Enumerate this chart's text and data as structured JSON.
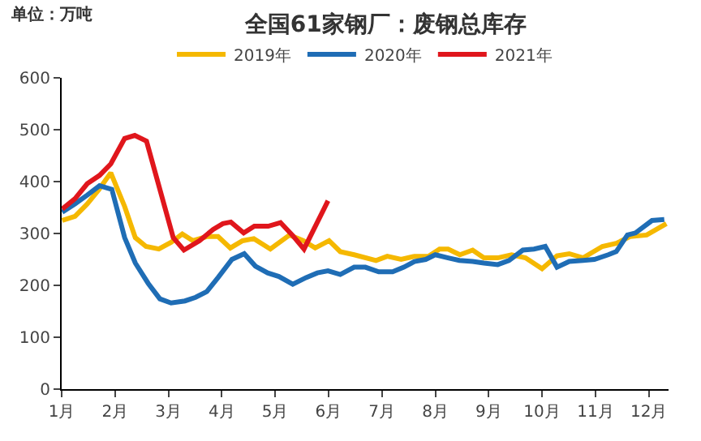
{
  "chart_data": {
    "type": "line",
    "title": "全国61家钢厂：废钢总库存",
    "ylabel": "单位：万吨",
    "xlim": [
      1,
      12.37
    ],
    "xticks": [
      {
        "value": 1,
        "label": "1月"
      },
      {
        "value": 2,
        "label": "2月"
      },
      {
        "value": 3,
        "label": "3月"
      },
      {
        "value": 4,
        "label": "4月"
      },
      {
        "value": 5,
        "label": "5月"
      },
      {
        "value": 6,
        "label": "6月"
      },
      {
        "value": 7,
        "label": "7月"
      },
      {
        "value": 8,
        "label": "8月"
      },
      {
        "value": 9,
        "label": "9月"
      },
      {
        "value": 10,
        "label": "10月"
      },
      {
        "value": 11,
        "label": "11月"
      },
      {
        "value": 12,
        "label": "12月"
      }
    ],
    "ylim": [
      0,
      600
    ],
    "yticks": [
      0,
      100,
      200,
      300,
      400,
      500,
      600
    ],
    "legend": "top",
    "marker": "none",
    "line_style": "solid",
    "series": [
      {
        "name": "2019年",
        "color": "#f5b800",
        "x": [
          1.01,
          1.25,
          1.48,
          1.7,
          1.92,
          2.18,
          2.38,
          2.58,
          2.82,
          3.05,
          3.26,
          3.46,
          3.72,
          3.93,
          4.16,
          4.39,
          4.6,
          4.91,
          5.27,
          5.53,
          5.75,
          6.01,
          6.22,
          6.48,
          6.89,
          7.1,
          7.36,
          7.61,
          7.87,
          8.08,
          8.24,
          8.46,
          8.7,
          8.91,
          9.17,
          9.43,
          9.69,
          10.0,
          10.28,
          10.51,
          10.77,
          11.13,
          11.39,
          11.65,
          11.96,
          12.33
        ],
        "values": [
          325,
          333,
          357,
          385,
          417,
          352,
          292,
          275,
          270,
          283,
          299,
          286,
          294,
          294,
          272,
          286,
          290,
          270,
          297,
          286,
          272,
          286,
          265,
          259,
          248,
          256,
          250,
          256,
          256,
          270,
          270,
          259,
          268,
          253,
          253,
          259,
          253,
          232,
          257,
          261,
          253,
          275,
          281,
          294,
          297,
          319
        ]
      },
      {
        "name": "2020年",
        "color": "#1f6db5",
        "x": [
          1.01,
          1.25,
          1.48,
          1.71,
          1.94,
          2.18,
          2.38,
          2.62,
          2.84,
          3.05,
          3.31,
          3.51,
          3.72,
          3.93,
          4.19,
          4.42,
          4.63,
          4.86,
          5.07,
          5.33,
          5.58,
          5.79,
          5.99,
          6.22,
          6.48,
          6.69,
          6.94,
          7.2,
          7.41,
          7.61,
          7.82,
          8.0,
          8.24,
          8.45,
          8.7,
          8.91,
          9.17,
          9.38,
          9.64,
          9.85,
          10.06,
          10.28,
          10.51,
          10.77,
          10.98,
          11.24,
          11.39,
          11.6,
          11.75,
          12.06,
          12.29
        ],
        "values": [
          341,
          357,
          374,
          392,
          385,
          292,
          243,
          204,
          174,
          166,
          170,
          177,
          188,
          215,
          250,
          261,
          237,
          224,
          217,
          202,
          215,
          224,
          228,
          221,
          235,
          235,
          226,
          226,
          235,
          246,
          250,
          259,
          253,
          248,
          246,
          243,
          240,
          248,
          268,
          270,
          275,
          235,
          246,
          248,
          250,
          259,
          265,
          297,
          301,
          325,
          327
        ]
      },
      {
        "name": "2021年",
        "color": "#e0161c",
        "x": [
          1.01,
          1.25,
          1.48,
          1.71,
          1.92,
          2.18,
          2.37,
          2.59,
          3.09,
          3.29,
          3.58,
          3.84,
          4.02,
          4.17,
          4.41,
          4.61,
          4.87,
          5.1,
          5.32,
          5.54,
          5.99
        ],
        "values": [
          347,
          367,
          396,
          412,
          434,
          483,
          489,
          478,
          292,
          268,
          286,
          308,
          319,
          322,
          301,
          314,
          314,
          321,
          297,
          270,
          363
        ]
      }
    ]
  }
}
